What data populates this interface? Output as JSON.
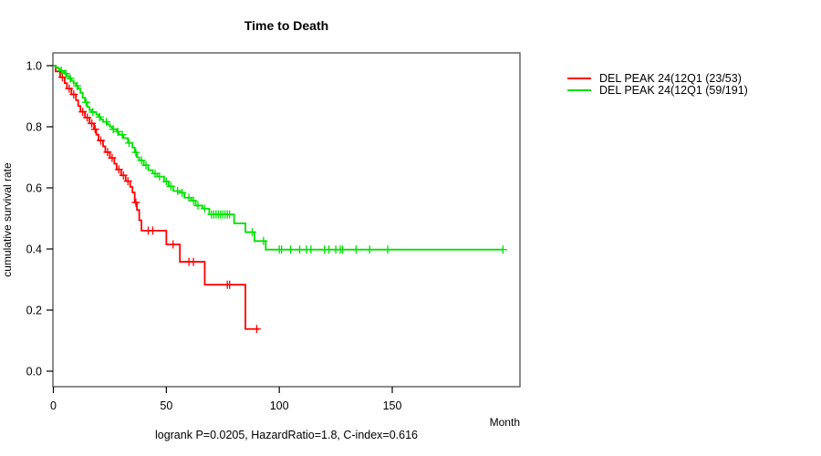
{
  "title": "Time to Death",
  "footer": "logrank P=0.0205, HazardRatio=1.8, C-index=0.616",
  "axes": {
    "x_label": "Month",
    "y_label": "cumulative survival rate"
  },
  "chart_data": {
    "type": "line",
    "subtype": "kaplan-meier-step",
    "title": "Time to Death",
    "xlabel": "Month",
    "ylabel": "cumulative survival rate",
    "xlim": [
      0,
      206
    ],
    "ylim": [
      0.0,
      1.0
    ],
    "x_ticks": [
      0,
      50,
      100,
      150
    ],
    "x_tick_labels": [
      "0",
      "50",
      "100",
      "150"
    ],
    "y_ticks": [
      0.0,
      0.2,
      0.4,
      0.6,
      0.8,
      1.0
    ],
    "y_tick_labels": [
      "0.0",
      "0.2",
      "0.4",
      "0.6",
      "0.8",
      "1.0"
    ],
    "grid": false,
    "legend_position": "right-outside",
    "axis_color": "#000000",
    "box_color": "#4d4d4d",
    "series": [
      {
        "name": "DEL PEAK 24(12Q1 (23/53)",
        "color": "#ff0000",
        "events": 23,
        "n": 53,
        "end_month": 91,
        "steps": [
          [
            0,
            1.0
          ],
          [
            1,
            0.981
          ],
          [
            3,
            0.962
          ],
          [
            5,
            0.943
          ],
          [
            6,
            0.925
          ],
          [
            8,
            0.906
          ],
          [
            10,
            0.887
          ],
          [
            11,
            0.868
          ],
          [
            12,
            0.849
          ],
          [
            14,
            0.83
          ],
          [
            16,
            0.811
          ],
          [
            18,
            0.792
          ],
          [
            19,
            0.774
          ],
          [
            20,
            0.755
          ],
          [
            22,
            0.736
          ],
          [
            23,
            0.717
          ],
          [
            25,
            0.698
          ],
          [
            27,
            0.679
          ],
          [
            28,
            0.66
          ],
          [
            30,
            0.641
          ],
          [
            32,
            0.622
          ],
          [
            34,
            0.603
          ],
          [
            35,
            0.585
          ],
          [
            36,
            0.552
          ],
          [
            37,
            0.528
          ],
          [
            38,
            0.494
          ],
          [
            39,
            0.46
          ],
          [
            50,
            0.415
          ],
          [
            56,
            0.358
          ],
          [
            67,
            0.283
          ],
          [
            85,
            0.138
          ]
        ],
        "censor_months": [
          4,
          7,
          9,
          13,
          15,
          17,
          18.5,
          21,
          24,
          26,
          29,
          31,
          33,
          36.5,
          42,
          44,
          53,
          60,
          62,
          77,
          78,
          90
        ]
      },
      {
        "name": "DEL PEAK 24(12Q1 (59/191)",
        "color": "#00e000",
        "events": 59,
        "n": 191,
        "end_month": 199,
        "steps": [
          [
            0,
            1.0
          ],
          [
            1,
            0.995
          ],
          [
            2,
            0.99
          ],
          [
            3,
            0.984
          ],
          [
            4,
            0.979
          ],
          [
            5,
            0.974
          ],
          [
            6,
            0.966
          ],
          [
            7,
            0.958
          ],
          [
            8,
            0.95
          ],
          [
            9,
            0.942
          ],
          [
            10,
            0.934
          ],
          [
            11,
            0.924
          ],
          [
            12,
            0.911
          ],
          [
            13,
            0.895
          ],
          [
            14,
            0.88
          ],
          [
            15,
            0.865
          ],
          [
            16,
            0.855
          ],
          [
            17,
            0.848
          ],
          [
            19,
            0.84
          ],
          [
            20,
            0.832
          ],
          [
            21,
            0.824
          ],
          [
            22,
            0.816
          ],
          [
            24,
            0.808
          ],
          [
            25,
            0.8
          ],
          [
            26,
            0.792
          ],
          [
            28,
            0.784
          ],
          [
            29,
            0.774
          ],
          [
            31,
            0.763
          ],
          [
            33,
            0.747
          ],
          [
            35,
            0.732
          ],
          [
            36,
            0.716
          ],
          [
            37,
            0.7
          ],
          [
            38,
            0.69
          ],
          [
            40,
            0.674
          ],
          [
            42,
            0.658
          ],
          [
            44,
            0.647
          ],
          [
            46,
            0.637
          ],
          [
            49,
            0.621
          ],
          [
            51,
            0.605
          ],
          [
            53,
            0.59
          ],
          [
            56,
            0.584
          ],
          [
            58,
            0.568
          ],
          [
            61,
            0.558
          ],
          [
            63,
            0.542
          ],
          [
            66,
            0.532
          ],
          [
            69,
            0.513
          ],
          [
            80,
            0.484
          ],
          [
            85,
            0.455
          ],
          [
            89,
            0.426
          ],
          [
            94,
            0.398
          ]
        ],
        "censor_months": [
          3.5,
          5.5,
          7.5,
          10.5,
          14.5,
          17.5,
          20.5,
          23.5,
          26.5,
          28.5,
          30.5,
          33.5,
          36.5,
          39,
          41,
          45,
          47,
          50,
          52,
          55,
          57,
          60,
          62,
          64,
          67,
          70,
          71,
          72,
          73,
          74,
          75,
          76,
          77,
          78,
          88,
          93,
          100,
          101,
          105,
          109,
          112,
          114,
          120,
          122,
          125,
          127,
          128,
          134,
          140,
          148,
          199
        ]
      }
    ]
  }
}
